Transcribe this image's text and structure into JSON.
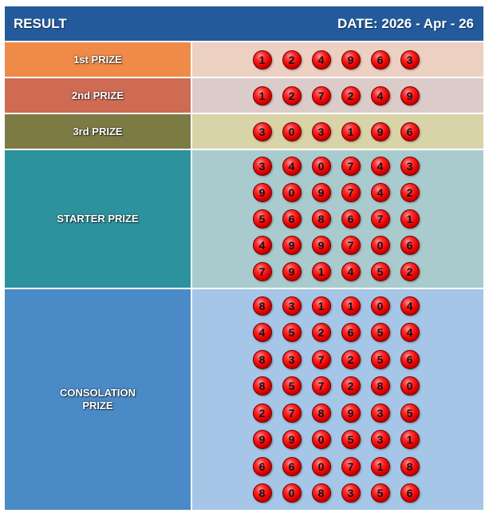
{
  "header": {
    "title": "RESULT",
    "date": "DATE: 2026 - Apr - 26"
  },
  "colors": {
    "header": "#235a9b",
    "first_label": "#ef8a48",
    "first_bg": "#ecd0c2",
    "second_label": "#cf6b53",
    "second_bg": "#dbccc9",
    "third_label": "#7c7b43",
    "third_bg": "#d9d3a8",
    "starter_label": "#2c929d",
    "starter_bg": "#a9cbcd",
    "consolation_label": "#4a8ac6",
    "consolation_bg": "#a5c6e7",
    "ball": "#e00000"
  },
  "prizes": [
    {
      "label": "1st PRIZE",
      "rows": [
        [
          "1",
          "2",
          "4",
          "9",
          "6",
          "3"
        ]
      ]
    },
    {
      "label": "2nd PRIZE",
      "rows": [
        [
          "1",
          "2",
          "7",
          "2",
          "4",
          "9"
        ]
      ]
    },
    {
      "label": "3rd PRIZE",
      "rows": [
        [
          "3",
          "0",
          "3",
          "1",
          "9",
          "6"
        ]
      ]
    },
    {
      "label": "STARTER PRIZE",
      "rows": [
        [
          "3",
          "4",
          "0",
          "7",
          "4",
          "3"
        ],
        [
          "9",
          "0",
          "9",
          "7",
          "4",
          "2"
        ],
        [
          "5",
          "6",
          "8",
          "6",
          "7",
          "1"
        ],
        [
          "4",
          "9",
          "9",
          "7",
          "0",
          "6"
        ],
        [
          "7",
          "9",
          "1",
          "4",
          "5",
          "2"
        ]
      ]
    },
    {
      "label": "CONSOLATION\nPRIZE",
      "rows": [
        [
          "8",
          "3",
          "1",
          "1",
          "0",
          "4"
        ],
        [
          "4",
          "5",
          "2",
          "6",
          "5",
          "4"
        ],
        [
          "8",
          "3",
          "7",
          "2",
          "5",
          "6"
        ],
        [
          "8",
          "5",
          "7",
          "2",
          "8",
          "0"
        ],
        [
          "2",
          "7",
          "8",
          "9",
          "3",
          "5"
        ],
        [
          "9",
          "9",
          "0",
          "5",
          "3",
          "1"
        ],
        [
          "6",
          "6",
          "0",
          "7",
          "1",
          "8"
        ],
        [
          "8",
          "0",
          "8",
          "3",
          "5",
          "6"
        ]
      ]
    }
  ]
}
